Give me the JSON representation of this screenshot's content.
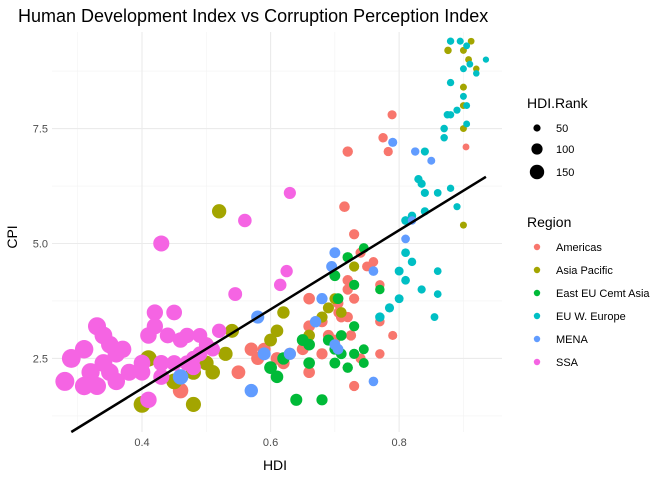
{
  "chart_data": {
    "type": "scatter",
    "title": "Human Development Index vs Corruption Perception Index",
    "xlabel": "HDI",
    "ylabel": "CPI",
    "xlim": [
      0.26,
      0.96
    ],
    "ylim": [
      0.9,
      9.6
    ],
    "x_ticks": [
      0.4,
      0.6,
      0.8
    ],
    "x_tick_labels": [
      "0.4",
      "0.6",
      "0.8"
    ],
    "y_ticks": [
      2.5,
      5.0,
      7.5
    ],
    "y_tick_labels": [
      "2.5",
      "5.0",
      "7.5"
    ],
    "grid": true,
    "trend_line": {
      "x": [
        0.29,
        0.935
      ],
      "y": [
        0.9,
        6.45
      ]
    },
    "size_legend": {
      "title": "HDI.Rank",
      "values": [
        50,
        100,
        150
      ],
      "labels": [
        "50",
        "100",
        "150"
      ]
    },
    "color_legend": {
      "title": "Region",
      "placement": "right"
    },
    "series": [
      {
        "name": "Americas",
        "color": "#F8766D",
        "points": [
          [
            0.789,
            7.8
          ],
          [
            0.775,
            7.3
          ],
          [
            0.783,
            7.0
          ],
          [
            0.72,
            7.0
          ],
          [
            0.904,
            7.1
          ],
          [
            0.73,
            5.2
          ],
          [
            0.715,
            5.8
          ],
          [
            0.74,
            4.8
          ],
          [
            0.75,
            4.5
          ],
          [
            0.77,
            4.1
          ],
          [
            0.72,
            4.0
          ],
          [
            0.705,
            3.7
          ],
          [
            0.66,
            3.8
          ],
          [
            0.71,
            3.4
          ],
          [
            0.72,
            3.4
          ],
          [
            0.725,
            3.0
          ],
          [
            0.66,
            3.2
          ],
          [
            0.69,
            3.0
          ],
          [
            0.68,
            3.3
          ],
          [
            0.7,
            2.9
          ],
          [
            0.77,
            3.3
          ],
          [
            0.77,
            2.6
          ],
          [
            0.79,
            3.0
          ],
          [
            0.74,
            2.5
          ],
          [
            0.63,
            2.6
          ],
          [
            0.62,
            2.4
          ],
          [
            0.61,
            2.5
          ],
          [
            0.59,
            2.7
          ],
          [
            0.57,
            2.7
          ],
          [
            0.58,
            2.5
          ],
          [
            0.55,
            2.2
          ],
          [
            0.66,
            2.2
          ],
          [
            0.73,
            1.9
          ],
          [
            0.46,
            1.8
          ],
          [
            0.68,
            2.6
          ],
          [
            0.65,
            2.7
          ],
          [
            0.706,
            3.5
          ],
          [
            0.76,
            4.6
          ],
          [
            0.73,
            3.8
          ],
          [
            0.72,
            4.2
          ]
        ]
      },
      {
        "name": "Asia Pacific",
        "color": "#A3A500",
        "points": [
          [
            0.912,
            9.4
          ],
          [
            0.9,
            9.2
          ],
          [
            0.876,
            9.2
          ],
          [
            0.908,
            9.0
          ],
          [
            0.9,
            8.4
          ],
          [
            0.9,
            8.0
          ],
          [
            0.9,
            7.5
          ],
          [
            0.9,
            5.4
          ],
          [
            0.92,
            8.8
          ],
          [
            0.52,
            5.7
          ],
          [
            0.73,
            4.5
          ],
          [
            0.7,
            3.8
          ],
          [
            0.68,
            3.4
          ],
          [
            0.66,
            3.0
          ],
          [
            0.62,
            3.5
          ],
          [
            0.6,
            2.9
          ],
          [
            0.54,
            3.1
          ],
          [
            0.5,
            2.8
          ],
          [
            0.49,
            2.5
          ],
          [
            0.5,
            2.4
          ],
          [
            0.48,
            2.2
          ],
          [
            0.41,
            2.5
          ],
          [
            0.4,
            1.5
          ],
          [
            0.48,
            1.5
          ],
          [
            0.45,
            2.0
          ],
          [
            0.69,
            3.6
          ],
          [
            0.71,
            3.5
          ],
          [
            0.61,
            3.1
          ],
          [
            0.53,
            2.6
          ],
          [
            0.51,
            2.2
          ]
        ]
      },
      {
        "name": "East EU Cemt Asia",
        "color": "#00BA38",
        "points": [
          [
            0.745,
            4.9
          ],
          [
            0.72,
            4.7
          ],
          [
            0.7,
            4.3
          ],
          [
            0.73,
            4.1
          ],
          [
            0.77,
            4.0
          ],
          [
            0.705,
            3.8
          ],
          [
            0.73,
            3.2
          ],
          [
            0.71,
            3.0
          ],
          [
            0.69,
            2.9
          ],
          [
            0.66,
            2.8
          ],
          [
            0.65,
            2.9
          ],
          [
            0.7,
            2.7
          ],
          [
            0.73,
            2.6
          ],
          [
            0.745,
            2.7
          ],
          [
            0.7,
            2.4
          ],
          [
            0.66,
            2.4
          ],
          [
            0.6,
            2.3
          ],
          [
            0.61,
            2.1
          ],
          [
            0.64,
            1.6
          ],
          [
            0.68,
            1.6
          ],
          [
            0.71,
            2.6
          ],
          [
            0.72,
            2.3
          ],
          [
            0.745,
            2.4
          ],
          [
            0.62,
            2.5
          ]
        ]
      },
      {
        "name": "EU W. Europe",
        "color": "#00BFC4",
        "points": [
          [
            0.88,
            9.4
          ],
          [
            0.895,
            9.4
          ],
          [
            0.905,
            9.3
          ],
          [
            0.935,
            9.0
          ],
          [
            0.91,
            8.9
          ],
          [
            0.9,
            8.8
          ],
          [
            0.92,
            8.7
          ],
          [
            0.88,
            8.5
          ],
          [
            0.9,
            8.2
          ],
          [
            0.905,
            8.0
          ],
          [
            0.89,
            7.9
          ],
          [
            0.88,
            7.8
          ],
          [
            0.905,
            7.6
          ],
          [
            0.875,
            7.8
          ],
          [
            0.87,
            7.5
          ],
          [
            0.87,
            7.3
          ],
          [
            0.84,
            7.0
          ],
          [
            0.83,
            6.4
          ],
          [
            0.835,
            6.3
          ],
          [
            0.84,
            6.1
          ],
          [
            0.86,
            6.1
          ],
          [
            0.88,
            6.2
          ],
          [
            0.89,
            5.8
          ],
          [
            0.84,
            5.7
          ],
          [
            0.81,
            5.5
          ],
          [
            0.82,
            5.6
          ],
          [
            0.81,
            4.8
          ],
          [
            0.82,
            4.6
          ],
          [
            0.8,
            4.4
          ],
          [
            0.81,
            4.2
          ],
          [
            0.86,
            4.4
          ],
          [
            0.835,
            4.0
          ],
          [
            0.86,
            3.9
          ],
          [
            0.785,
            3.6
          ],
          [
            0.8,
            3.8
          ],
          [
            0.77,
            3.4
          ],
          [
            0.855,
            3.4
          ]
        ]
      },
      {
        "name": "MENA",
        "color": "#619CFF",
        "points": [
          [
            0.79,
            7.2
          ],
          [
            0.825,
            7.0
          ],
          [
            0.85,
            6.8
          ],
          [
            0.82,
            5.5
          ],
          [
            0.81,
            5.1
          ],
          [
            0.7,
            4.8
          ],
          [
            0.695,
            4.5
          ],
          [
            0.76,
            4.4
          ],
          [
            0.58,
            3.4
          ],
          [
            0.68,
            3.8
          ],
          [
            0.67,
            3.3
          ],
          [
            0.63,
            2.6
          ],
          [
            0.7,
            2.8
          ],
          [
            0.705,
            2.7
          ],
          [
            0.76,
            2.0
          ],
          [
            0.57,
            1.8
          ],
          [
            0.46,
            2.1
          ],
          [
            0.59,
            2.6
          ]
        ]
      },
      {
        "name": "SSA",
        "color": "#F564E3",
        "points": [
          [
            0.63,
            6.1
          ],
          [
            0.56,
            5.5
          ],
          [
            0.43,
            5.0
          ],
          [
            0.625,
            4.4
          ],
          [
            0.615,
            4.1
          ],
          [
            0.545,
            3.9
          ],
          [
            0.42,
            3.5
          ],
          [
            0.45,
            3.5
          ],
          [
            0.41,
            3.0
          ],
          [
            0.42,
            3.2
          ],
          [
            0.44,
            3.0
          ],
          [
            0.47,
            3.0
          ],
          [
            0.49,
            2.6
          ],
          [
            0.52,
            3.1
          ],
          [
            0.5,
            2.8
          ],
          [
            0.33,
            3.2
          ],
          [
            0.31,
            2.7
          ],
          [
            0.29,
            2.5
          ],
          [
            0.34,
            2.4
          ],
          [
            0.36,
            2.6
          ],
          [
            0.35,
            2.2
          ],
          [
            0.32,
            2.2
          ],
          [
            0.33,
            1.9
          ],
          [
            0.31,
            1.9
          ],
          [
            0.36,
            2.0
          ],
          [
            0.38,
            2.2
          ],
          [
            0.4,
            2.2
          ],
          [
            0.43,
            2.4
          ],
          [
            0.45,
            2.4
          ],
          [
            0.47,
            2.4
          ],
          [
            0.48,
            2.3
          ],
          [
            0.43,
            2.1
          ],
          [
            0.41,
            1.6
          ],
          [
            0.35,
            2.8
          ],
          [
            0.37,
            2.7
          ],
          [
            0.34,
            3.0
          ],
          [
            0.46,
            2.9
          ],
          [
            0.49,
            3.0
          ],
          [
            0.28,
            2.0
          ],
          [
            0.51,
            2.7
          ],
          [
            0.48,
            2.5
          ],
          [
            0.4,
            2.4
          ]
        ]
      }
    ]
  }
}
